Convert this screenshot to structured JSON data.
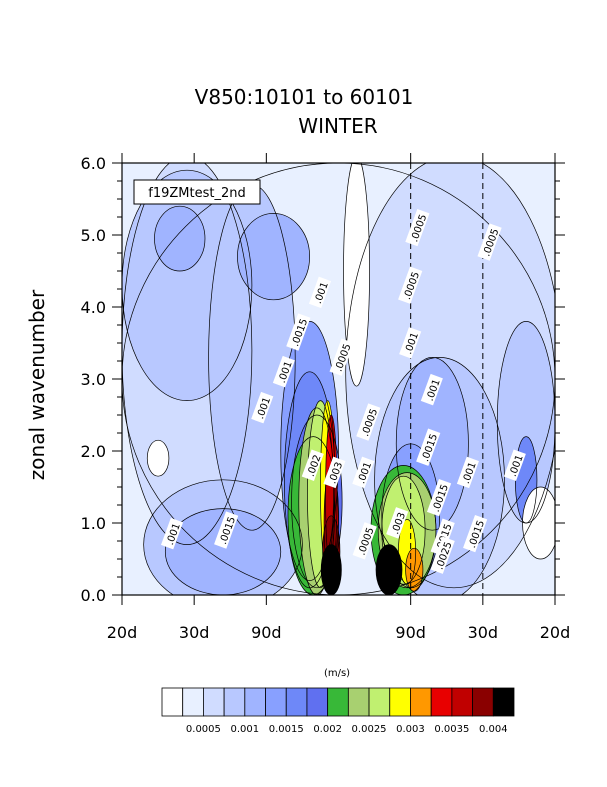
{
  "chart_data": {
    "type": "contour",
    "title": "V850:10101 to 60101",
    "subtitle": "WINTER",
    "ylabel": "zonal wavenumber",
    "case_label": "f19ZMtest_2nd",
    "units": "(m/s)",
    "x_tick_labels": [
      "20d",
      "30d",
      "90d",
      "90d",
      "30d",
      "20d"
    ],
    "y_ticks": [
      "0.0",
      "1.0",
      "2.0",
      "3.0",
      "4.0",
      "5.0",
      "6.0"
    ],
    "ylim": [
      0,
      6
    ],
    "colorbar": {
      "colors": [
        "#ffffff",
        "#e8f0ff",
        "#d0dcff",
        "#b8c8ff",
        "#a0b4ff",
        "#88a0ff",
        "#6e88f8",
        "#6070f0",
        "#38b838",
        "#a8d070",
        "#c0f070",
        "#ffff00",
        "#ff9800",
        "#e80000",
        "#c00000",
        "#8a0000",
        "#000000"
      ],
      "labels": [
        "0.0005",
        "0.001",
        "0.0015",
        "0.002",
        "0.0025",
        "0.003",
        "0.0035",
        "0.004"
      ]
    },
    "contour_labels": [
      {
        "text": ".001",
        "x": -2.3,
        "y": 0.85
      },
      {
        "text": ".0015",
        "x": -1.55,
        "y": 0.9
      },
      {
        "text": ".001",
        "x": -1.05,
        "y": 2.6
      },
      {
        "text": ".001",
        "x": -0.75,
        "y": 3.1
      },
      {
        "text": ".0015",
        "x": -0.55,
        "y": 3.65
      },
      {
        "text": ".001",
        "x": -0.25,
        "y": 4.2
      },
      {
        "text": ".002",
        "x": -0.35,
        "y": 1.8
      },
      {
        "text": ".003",
        "x": -0.05,
        "y": 1.7
      },
      {
        "text": ".0005",
        "x": 0.05,
        "y": 3.3
      },
      {
        "text": ".001",
        "x": 0.35,
        "y": 1.7
      },
      {
        "text": ".0005",
        "x": 0.37,
        "y": 0.75
      },
      {
        "text": ".0005",
        "x": 0.42,
        "y": 2.4
      },
      {
        "text": ".003",
        "x": 0.82,
        "y": 1.0
      },
      {
        "text": ".0005",
        "x": 1.0,
        "y": 4.3
      },
      {
        "text": ".001",
        "x": 1.0,
        "y": 3.5
      },
      {
        "text": ".0005",
        "x": 1.1,
        "y": 5.1
      },
      {
        "text": ".001",
        "x": 1.3,
        "y": 2.85
      },
      {
        "text": ".0015",
        "x": 1.25,
        "y": 2.05
      },
      {
        "text": ".0015",
        "x": 1.4,
        "y": 1.35
      },
      {
        "text": ".0015",
        "x": 1.45,
        "y": 0.8
      },
      {
        "text": ".0025",
        "x": 1.45,
        "y": 0.55
      },
      {
        "text": ".001",
        "x": 1.8,
        "y": 1.7
      },
      {
        "text": ".0015",
        "x": 1.9,
        "y": 0.85
      },
      {
        "text": ".0005",
        "x": 2.1,
        "y": 4.9
      },
      {
        "text": ".001",
        "x": 2.45,
        "y": 1.8
      }
    ]
  }
}
